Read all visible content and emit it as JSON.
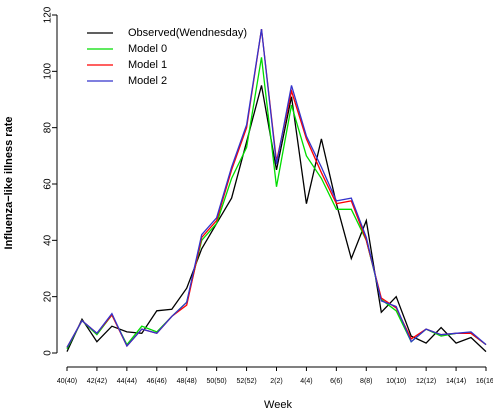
{
  "chart_data": {
    "type": "line",
    "xlabel": "Week",
    "ylabel": "Influenza−like illness rate",
    "ylim": [
      0,
      120
    ],
    "yticks": [
      0,
      20,
      40,
      60,
      80,
      100,
      120
    ],
    "x_tick_labels": [
      "40(40)",
      "42(42)",
      "44(44)",
      "46(46)",
      "48(48)",
      "50(50)",
      "52(52)",
      "2(2)",
      "4(4)",
      "6(6)",
      "8(8)",
      "10(10)",
      "12(12)",
      "14(14)",
      "16(16)"
    ],
    "x_tick_indices": [
      0,
      2,
      4,
      6,
      8,
      10,
      12,
      14,
      16,
      18,
      20,
      22,
      24,
      26,
      28
    ],
    "legend_position": "top-left",
    "series": [
      {
        "name": "Observed(Wendnesday)",
        "color": "#000000",
        "values": [
          0.5,
          12,
          4,
          9.5,
          7.5,
          7,
          15,
          15.5,
          23,
          37,
          46,
          55,
          75,
          95,
          65,
          91,
          53,
          76,
          53,
          33.5,
          47,
          14.5,
          20,
          6,
          3.5,
          9,
          3.5,
          5.5,
          0.5
        ]
      },
      {
        "name": "Model 0",
        "color": "#00dd00",
        "values": [
          1.5,
          11.5,
          6.5,
          13.5,
          3,
          9.5,
          7.5,
          13,
          18,
          40,
          46,
          62,
          73,
          105,
          59,
          88,
          70,
          62,
          51,
          51,
          40,
          19,
          15,
          4,
          8.5,
          6,
          7,
          7,
          3
        ]
      },
      {
        "name": "Model 1",
        "color": "#ff0000",
        "values": [
          2,
          11.5,
          7,
          13.5,
          2.5,
          8.5,
          7,
          13,
          17,
          41,
          47,
          65,
          80,
          115,
          68,
          93,
          76,
          64,
          53,
          54,
          40,
          19.5,
          16,
          5,
          8.5,
          6.5,
          7,
          7,
          3
        ]
      },
      {
        "name": "Model 2",
        "color": "#3333cc",
        "values": [
          2,
          11.5,
          7,
          14,
          2.5,
          8.5,
          7,
          13,
          18,
          42,
          48,
          66,
          81,
          115,
          67,
          95,
          77,
          66,
          54,
          55,
          41,
          18.5,
          16.5,
          4,
          8.5,
          6.5,
          7,
          7.5,
          3
        ]
      }
    ]
  }
}
